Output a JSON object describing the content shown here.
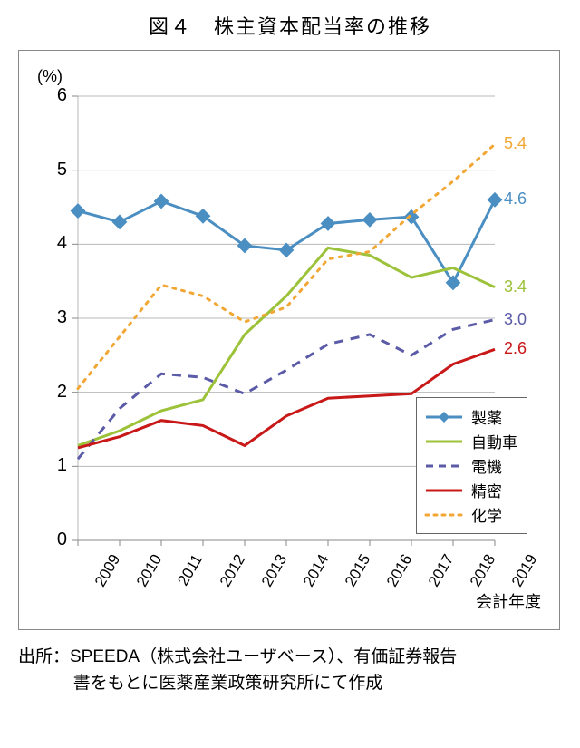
{
  "title": "図４　株主資本配当率の推移",
  "source_line1": "出所：SPEEDA（株式会社ユーザベース）、有価証券報告",
  "source_line2": "書をもとに医薬産業政策研究所にて作成",
  "chart": {
    "type": "line",
    "y_unit": "(%)",
    "x_axis_title": "会計年度",
    "background_color": "#ffffff",
    "grid_color": "#b8b8b8",
    "border_color": "#888888",
    "ylim": [
      0,
      6
    ],
    "ytick_step": 1,
    "yticks": [
      0,
      1,
      2,
      3,
      4,
      5,
      6
    ],
    "x_categories": [
      "2009",
      "2010",
      "2011",
      "2012",
      "2013",
      "2014",
      "2015",
      "2016",
      "2017",
      "2018",
      "2019"
    ],
    "x_label_rotation": -60,
    "x_label_fontsize": 17,
    "y_label_fontsize": 20,
    "series": [
      {
        "name": "製薬",
        "legend_label": "製薬",
        "color": "#4a8ec2",
        "line_width": 3,
        "marker": "diamond",
        "marker_size": 10,
        "dash": "solid",
        "values": [
          4.45,
          4.3,
          4.58,
          4.38,
          3.98,
          3.92,
          4.28,
          4.33,
          4.37,
          3.48,
          4.6
        ],
        "end_label": "4.6",
        "end_label_color": "#4a8ec2"
      },
      {
        "name": "自動車",
        "legend_label": "自動車",
        "color": "#9cc23a",
        "line_width": 3,
        "marker": "none",
        "dash": "solid",
        "values": [
          1.28,
          1.48,
          1.75,
          1.9,
          2.78,
          3.3,
          3.95,
          3.85,
          3.55,
          3.68,
          3.42
        ],
        "end_label": "3.4",
        "end_label_color": "#9cc23a"
      },
      {
        "name": "電機",
        "legend_label": "電機",
        "color": "#5b5ba8",
        "line_width": 3,
        "marker": "none",
        "dash": "dashed",
        "dash_pattern": "10 8",
        "values": [
          1.1,
          1.78,
          2.25,
          2.2,
          1.98,
          2.3,
          2.65,
          2.78,
          2.5,
          2.85,
          2.98
        ],
        "end_label": "3.0",
        "end_label_color": "#5b5ba8"
      },
      {
        "name": "精密",
        "legend_label": "精密",
        "color": "#c81818",
        "line_width": 3,
        "marker": "none",
        "dash": "solid",
        "values": [
          1.25,
          1.4,
          1.62,
          1.55,
          1.28,
          1.68,
          1.92,
          1.95,
          1.98,
          2.38,
          2.58
        ],
        "end_label": "2.6",
        "end_label_color": "#c81818"
      },
      {
        "name": "化学",
        "legend_label": "化学",
        "color": "#f2a735",
        "line_width": 3,
        "marker": "none",
        "dash": "dotted",
        "dash_pattern": "3 7",
        "values": [
          2.05,
          2.75,
          3.45,
          3.3,
          2.95,
          3.15,
          3.8,
          3.9,
          4.4,
          4.85,
          5.35
        ],
        "end_label": "5.4",
        "end_label_color": "#f2a735"
      }
    ],
    "legend": {
      "position": "bottom-right-inside",
      "border_color": "#666666",
      "background": "#ffffff",
      "fontsize": 17
    }
  }
}
